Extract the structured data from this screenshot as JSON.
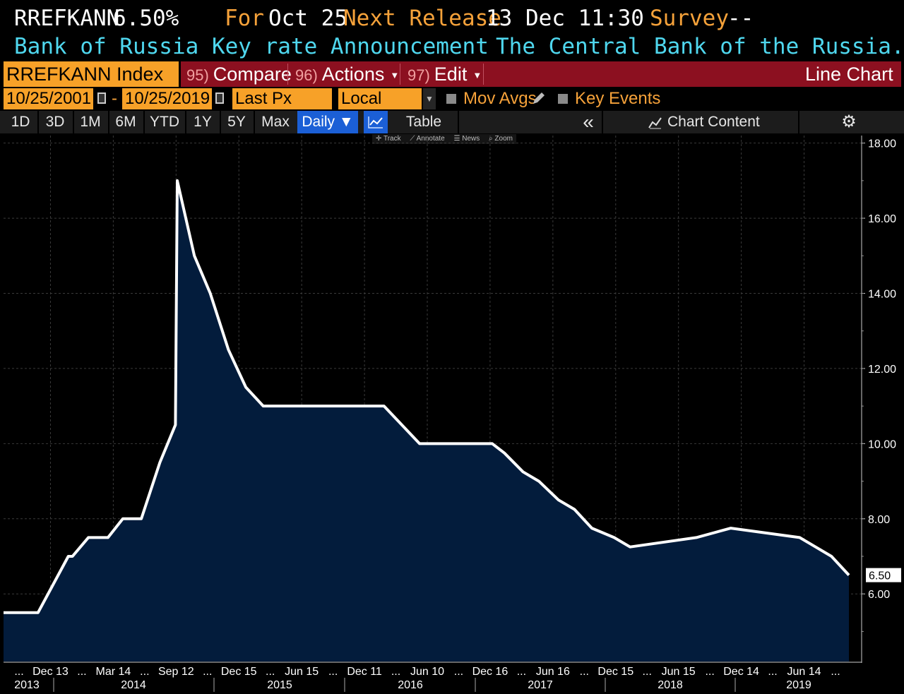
{
  "header": {
    "ticker": "RREFKANN",
    "value": "6.50%",
    "for_label": "For",
    "for_date": "Oct 25",
    "next_release_label": "Next Release",
    "next_release_value": "13 Dec 11:30",
    "survey_label": "Survey",
    "survey_value": "--",
    "description": "Bank of Russia Key rate Announcement",
    "source": "The Central Bank of the Russia..."
  },
  "menu": {
    "security": "RREFKANN Index",
    "compare_num": "95)",
    "compare_label": "Compare",
    "actions_num": "96)",
    "actions_label": "Actions",
    "edit_num": "97)",
    "edit_label": "Edit",
    "chart_type": "Line Chart"
  },
  "controls": {
    "start_date": "10/25/2001",
    "dash": "-",
    "end_date": "10/25/2019",
    "field": "Last Px",
    "currency": "Local CCY",
    "mov_avgs": "Mov Avgs",
    "key_events": "Key Events"
  },
  "toolbar": {
    "ranges": [
      "1D",
      "3D",
      "1M",
      "6M",
      "YTD",
      "1Y",
      "5Y",
      "Max"
    ],
    "frequency": "Daily ▼",
    "table": "Table",
    "collapse": "«",
    "chart_content": "Chart Content"
  },
  "tools": [
    "Track",
    "Annotate",
    "News",
    "Zoom"
  ],
  "colors": {
    "orange": "#f7a128",
    "cyan": "#4fd7ee",
    "menu_red": "#8c1020",
    "active_blue": "#1b5fd6",
    "fill": "#031c3c",
    "line": "#ffffff"
  },
  "chart_data": {
    "type": "area",
    "y_tick_labels": [
      "18.00",
      "16.00",
      "14.00",
      "12.00",
      "10.00",
      "8.00",
      "6.00"
    ],
    "ylim": [
      4.2,
      18.2
    ],
    "last_value_label": "6.50",
    "x_tick_labels": [
      "...",
      "Dec 13",
      "...",
      "Mar 14",
      "...",
      "Sep 12",
      "...",
      "Dec 15",
      "...",
      "Jun 15",
      "...",
      "Dec 11",
      "...",
      "Jun 10",
      "...",
      "Dec 16",
      "...",
      "Jun 16",
      "...",
      "Dec 15",
      "...",
      "Jun 15",
      "...",
      "Dec 14",
      "...",
      "Jun 14",
      "..."
    ],
    "year_labels": [
      "2013",
      "2014",
      "2015",
      "2016",
      "2017",
      "2018",
      "2019"
    ],
    "series": [
      {
        "x": [
          "2013-09-13",
          "2013-10-25",
          "2013-12-13",
          "2014-03-03",
          "2014-03-14",
          "2014-04-25",
          "2014-06-16",
          "2014-07-25",
          "2014-09-12",
          "2014-10-31",
          "2014-12-11",
          "2014-12-16",
          "2015-01-30",
          "2015-03-13",
          "2015-04-30",
          "2015-06-15",
          "2015-07-31",
          "2015-09-11",
          "2016-06-14",
          "2016-09-16",
          "2017-03-27",
          "2017-04-28",
          "2017-06-16",
          "2017-07-28",
          "2017-09-18",
          "2017-10-30",
          "2017-12-15",
          "2018-02-12",
          "2018-03-26",
          "2018-09-17",
          "2018-12-17",
          "2019-06-17",
          "2019-07-29",
          "2019-09-09",
          "2019-10-25"
        ],
        "y": [
          5.5,
          5.5,
          5.5,
          7.0,
          7.0,
          7.5,
          7.5,
          8.0,
          8.0,
          9.5,
          10.5,
          17.0,
          15.0,
          14.0,
          12.5,
          11.5,
          11.0,
          11.0,
          11.0,
          10.0,
          10.0,
          9.75,
          9.25,
          9.0,
          8.5,
          8.25,
          7.75,
          7.5,
          7.25,
          7.5,
          7.75,
          7.5,
          7.25,
          7.0,
          6.5
        ]
      }
    ]
  }
}
